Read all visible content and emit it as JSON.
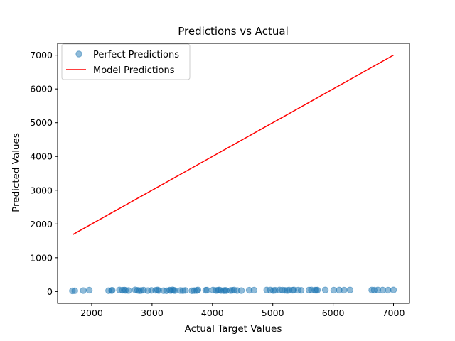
{
  "chart_data": {
    "type": "scatter",
    "title": "Predictions vs Actual",
    "xlabel": "Actual Target Values",
    "ylabel": "Predicted Values",
    "xlim": [
      1435,
      7265
    ],
    "ylim": [
      -350,
      7350
    ],
    "xticks": [
      2000,
      3000,
      4000,
      5000,
      6000,
      7000
    ],
    "yticks": [
      0,
      1000,
      2000,
      3000,
      4000,
      5000,
      6000,
      7000
    ],
    "grid": false,
    "legend_position": "upper-left",
    "series": [
      {
        "name": "Perfect Predictions",
        "kind": "scatter",
        "color": "#1f77b4",
        "alpha": 0.5,
        "x": [
          1680,
          1720,
          1860,
          1960,
          2280,
          2330,
          2340,
          2460,
          2510,
          2540,
          2560,
          2610,
          2720,
          2760,
          2790,
          2820,
          2860,
          2930,
          2990,
          3060,
          3090,
          3110,
          3190,
          3240,
          3290,
          3310,
          3340,
          3360,
          3380,
          3470,
          3510,
          3550,
          3660,
          3700,
          3740,
          3760,
          3890,
          3910,
          4010,
          4060,
          4090,
          4110,
          4140,
          4190,
          4210,
          4230,
          4300,
          4330,
          4360,
          4410,
          4480,
          4610,
          4690,
          4900,
          4960,
          5010,
          5040,
          5110,
          5160,
          5200,
          5240,
          5270,
          5330,
          5350,
          5420,
          5470,
          5600,
          5640,
          5700,
          5720,
          5740,
          5870,
          6010,
          6100,
          6180,
          6280,
          6640,
          6680,
          6740,
          6820,
          6910,
          7000
        ],
        "y": [
          20,
          22,
          28,
          40,
          25,
          30,
          35,
          45,
          38,
          42,
          33,
          30,
          48,
          36,
          25,
          30,
          40,
          28,
          32,
          35,
          45,
          30,
          25,
          22,
          40,
          30,
          48,
          35,
          28,
          30,
          25,
          32,
          22,
          28,
          30,
          45,
          38,
          40,
          42,
          30,
          38,
          45,
          30,
          25,
          35,
          28,
          30,
          35,
          42,
          30,
          28,
          38,
          40,
          45,
          42,
          30,
          38,
          45,
          40,
          35,
          30,
          42,
          38,
          45,
          40,
          35,
          42,
          45,
          40,
          38,
          42,
          45,
          40,
          42,
          40,
          45,
          42,
          40,
          45,
          42,
          40,
          45
        ]
      },
      {
        "name": "Model Predictions",
        "kind": "line",
        "color": "#ff0000",
        "x": [
          1690,
          7000
        ],
        "y": [
          1690,
          7000
        ]
      }
    ]
  }
}
